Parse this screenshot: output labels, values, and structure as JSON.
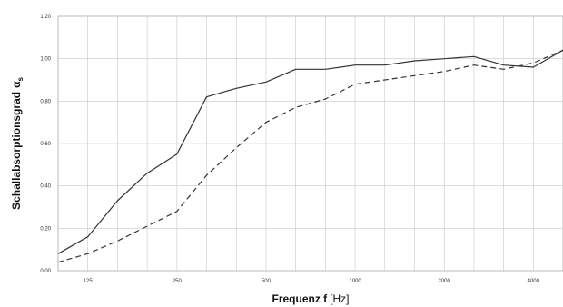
{
  "chart_data": {
    "type": "line",
    "xlabel": "Frequenz f",
    "xunit": "[Hz]",
    "ylabel": "Schallabsorptionsgrad",
    "ysymbol": "α",
    "ysub": "s",
    "x_scale": "log (third-octave bands 100–5000 Hz)",
    "x": [
      100,
      125,
      160,
      200,
      250,
      315,
      400,
      500,
      630,
      800,
      1000,
      1250,
      1600,
      2000,
      2500,
      3150,
      4000,
      5000
    ],
    "x_tick_labels": [
      "125",
      "250",
      "500",
      "1000",
      "2000",
      "4000"
    ],
    "x_tick_values": [
      125,
      250,
      500,
      1000,
      2000,
      4000
    ],
    "y_tick_labels": [
      "0,00",
      "0,20",
      "0,40",
      "0,60",
      "0,80",
      "1,00",
      "1,20"
    ],
    "ylim": [
      0,
      1.2
    ],
    "grid": true,
    "legend": "none",
    "series": [
      {
        "style": "solid",
        "color": "#333333",
        "values": [
          0.08,
          0.16,
          0.33,
          0.46,
          0.55,
          0.82,
          0.86,
          0.89,
          0.95,
          0.95,
          0.97,
          0.97,
          0.99,
          1.0,
          1.01,
          0.97,
          0.96,
          1.04
        ]
      },
      {
        "style": "dashed",
        "color": "#333333",
        "values": [
          0.04,
          0.08,
          0.14,
          0.21,
          0.28,
          0.45,
          0.58,
          0.7,
          0.77,
          0.81,
          0.88,
          0.9,
          0.92,
          0.94,
          0.97,
          0.95,
          0.98,
          1.04
        ]
      }
    ]
  }
}
